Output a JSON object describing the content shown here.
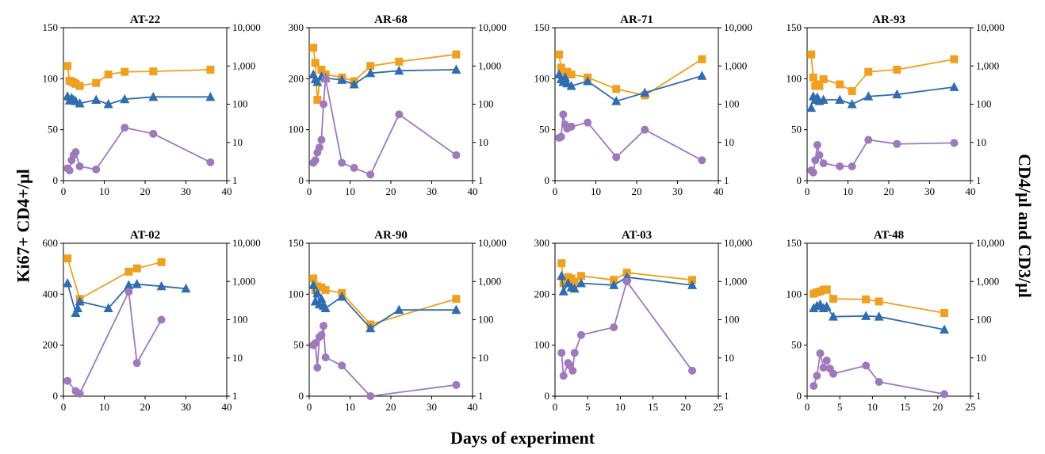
{
  "figure": {
    "ylabel_left": "Ki67+ CD4+/µl",
    "ylabel_right": "CD4/µl and CD3/µl",
    "xlabel": "Days of experiment"
  },
  "colors": {
    "orange": "#F0A020",
    "blue": "#2F6DB0",
    "purple": "#9F79BB",
    "axis": "#000000"
  },
  "chart_data": [
    {
      "type": "line",
      "title": "AT-22",
      "xlim": [
        0,
        40
      ],
      "xticks": [
        "0",
        "10",
        "20",
        "30",
        "40"
      ],
      "ylim": [
        0,
        150
      ],
      "yticks": [
        "0",
        "50",
        "100",
        "150"
      ],
      "y2log": true,
      "y2lim": [
        1,
        10000
      ],
      "y2ticks": [
        "1",
        "10",
        "100",
        "1,000",
        "10,000"
      ],
      "series": [
        {
          "marker": "square",
          "color": "orange",
          "axis": "right",
          "x": [
            1,
            1.5,
            2,
            2.5,
            3,
            4,
            8,
            11,
            15,
            22,
            36
          ],
          "y": [
            1000,
            410,
            390,
            370,
            340,
            300,
            360,
            600,
            700,
            720,
            800
          ]
        },
        {
          "marker": "triangle",
          "color": "blue",
          "axis": "right",
          "x": [
            1,
            1.5,
            2,
            2.5,
            3,
            4,
            8,
            11,
            15,
            22,
            36
          ],
          "y": [
            160,
            125,
            145,
            130,
            120,
            105,
            130,
            100,
            135,
            155,
            155
          ]
        },
        {
          "marker": "circle",
          "color": "purple",
          "axis": "left",
          "x": [
            1,
            1.5,
            2,
            2.5,
            3,
            4,
            8,
            15,
            22,
            36
          ],
          "y": [
            12,
            10,
            20,
            25,
            28,
            14,
            11,
            52,
            46,
            18
          ]
        }
      ]
    },
    {
      "type": "line",
      "title": "AR-68",
      "xlim": [
        0,
        40
      ],
      "xticks": [
        "0",
        "10",
        "20",
        "30",
        "40"
      ],
      "ylim": [
        0,
        300
      ],
      "yticks": [
        "0",
        "100",
        "200",
        "300"
      ],
      "y2log": true,
      "y2lim": [
        1,
        10000
      ],
      "y2ticks": [
        "1",
        "10",
        "100",
        "1,000",
        "10,000"
      ],
      "series": [
        {
          "marker": "square",
          "color": "orange",
          "axis": "right",
          "x": [
            1,
            1.5,
            2,
            3,
            4,
            8,
            11,
            15,
            22,
            36
          ],
          "y": [
            3000,
            1200,
            130,
            800,
            600,
            500,
            400,
            1000,
            1300,
            2000
          ]
        },
        {
          "marker": "triangle",
          "color": "blue",
          "axis": "right",
          "x": [
            1,
            1.5,
            2,
            3,
            4,
            8,
            11,
            15,
            22,
            36
          ],
          "y": [
            600,
            450,
            380,
            530,
            480,
            430,
            330,
            650,
            750,
            800
          ]
        },
        {
          "marker": "circle",
          "color": "purple",
          "axis": "left",
          "x": [
            1,
            1.5,
            2,
            2.5,
            3,
            3.5,
            4,
            8,
            11,
            15,
            22,
            36
          ],
          "y": [
            35,
            40,
            55,
            65,
            80,
            150,
            200,
            35,
            25,
            12,
            130,
            50
          ]
        }
      ]
    },
    {
      "type": "line",
      "title": "AR-71",
      "xlim": [
        0,
        40
      ],
      "xticks": [
        "0",
        "10",
        "20",
        "30",
        "40"
      ],
      "ylim": [
        0,
        150
      ],
      "yticks": [
        "0",
        "50",
        "100",
        "150"
      ],
      "y2log": true,
      "y2lim": [
        1,
        10000
      ],
      "y2ticks": [
        "1",
        "10",
        "100",
        "1,000",
        "10,000"
      ],
      "series": [
        {
          "marker": "square",
          "color": "orange",
          "axis": "right",
          "x": [
            1,
            1.5,
            2,
            3,
            4,
            8,
            15,
            22,
            36
          ],
          "y": [
            2000,
            900,
            700,
            700,
            600,
            500,
            250,
            170,
            1500
          ]
        },
        {
          "marker": "triangle",
          "color": "blue",
          "axis": "right",
          "x": [
            1,
            1.5,
            2,
            2.5,
            3,
            4,
            8,
            15,
            22,
            36
          ],
          "y": [
            600,
            450,
            380,
            500,
            350,
            300,
            400,
            120,
            200,
            550
          ]
        },
        {
          "marker": "circle",
          "color": "purple",
          "axis": "left",
          "x": [
            1,
            1.5,
            2,
            2.5,
            3,
            4,
            8,
            15,
            22,
            36
          ],
          "y": [
            42,
            43,
            65,
            55,
            51,
            53,
            57,
            23,
            50,
            20
          ]
        }
      ]
    },
    {
      "type": "line",
      "title": "AR-93",
      "xlim": [
        0,
        40
      ],
      "xticks": [
        "0",
        "10",
        "20",
        "30",
        "40"
      ],
      "ylim": [
        0,
        150
      ],
      "yticks": [
        "0",
        "50",
        "100",
        "150"
      ],
      "y2log": true,
      "y2lim": [
        1,
        10000
      ],
      "y2ticks": [
        "1",
        "10",
        "100",
        "1,000",
        "10,000"
      ],
      "series": [
        {
          "marker": "square",
          "color": "orange",
          "axis": "right",
          "x": [
            1,
            1.5,
            2,
            2.5,
            3,
            4,
            8,
            11,
            15,
            22,
            36
          ],
          "y": [
            2000,
            500,
            300,
            330,
            300,
            450,
            330,
            220,
            700,
            800,
            1500
          ]
        },
        {
          "marker": "triangle",
          "color": "blue",
          "axis": "right",
          "x": [
            1,
            1.5,
            2,
            2.5,
            3,
            4,
            8,
            11,
            15,
            22,
            36
          ],
          "y": [
            80,
            160,
            130,
            150,
            120,
            130,
            130,
            100,
            160,
            180,
            280
          ]
        },
        {
          "marker": "circle",
          "color": "purple",
          "axis": "left",
          "x": [
            1,
            1.5,
            2,
            2.5,
            3,
            4,
            8,
            11,
            15,
            22,
            36
          ],
          "y": [
            10,
            8,
            20,
            35,
            25,
            17,
            14,
            14,
            40,
            36,
            37
          ]
        }
      ]
    },
    {
      "type": "line",
      "title": "AT-02",
      "xlim": [
        0,
        40
      ],
      "xticks": [
        "0",
        "10",
        "20",
        "30",
        "40"
      ],
      "ylim": [
        0,
        600
      ],
      "yticks": [
        "0",
        "200",
        "400",
        "600"
      ],
      "y2log": true,
      "y2lim": [
        1,
        10000
      ],
      "y2ticks": [
        "1",
        "10",
        "100",
        "1,000",
        "10,000"
      ],
      "series": [
        {
          "marker": "square",
          "color": "orange",
          "axis": "right",
          "x": [
            1,
            4,
            16,
            18,
            24
          ],
          "y": [
            4000,
            350,
            1800,
            2200,
            3200
          ]
        },
        {
          "marker": "triangle",
          "color": "blue",
          "axis": "right",
          "x": [
            1,
            3,
            3.5,
            4,
            11,
            16,
            18,
            24,
            30
          ],
          "y": [
            900,
            150,
            200,
            300,
            200,
            800,
            850,
            750,
            650
          ]
        },
        {
          "marker": "circle",
          "color": "purple",
          "axis": "left",
          "x": [
            1,
            3,
            4,
            16,
            18,
            24
          ],
          "y": [
            60,
            20,
            10,
            410,
            130,
            300
          ]
        }
      ]
    },
    {
      "type": "line",
      "title": "AR-90",
      "xlim": [
        0,
        40
      ],
      "xticks": [
        "0",
        "10",
        "20",
        "30",
        "40"
      ],
      "ylim": [
        0,
        150
      ],
      "yticks": [
        "0",
        "50",
        "100",
        "150"
      ],
      "y2log": true,
      "y2lim": [
        1,
        10000
      ],
      "y2ticks": [
        "1",
        "10",
        "100",
        "1,000",
        "10,000"
      ],
      "series": [
        {
          "marker": "square",
          "color": "orange",
          "axis": "right",
          "x": [
            1,
            1.5,
            2,
            3,
            4,
            8,
            15,
            36
          ],
          "y": [
            1200,
            600,
            750,
            700,
            600,
            500,
            75,
            350
          ]
        },
        {
          "marker": "triangle",
          "color": "blue",
          "axis": "right",
          "x": [
            1,
            1.5,
            2,
            2.5,
            3,
            3.5,
            4,
            8,
            15,
            22,
            36
          ],
          "y": [
            800,
            300,
            500,
            250,
            350,
            230,
            200,
            400,
            60,
            180,
            180
          ]
        },
        {
          "marker": "circle",
          "color": "purple",
          "axis": "left",
          "x": [
            1,
            1.5,
            2,
            2.5,
            3,
            3.5,
            4,
            8,
            15,
            36
          ],
          "y": [
            50,
            52,
            28,
            58,
            60,
            69,
            38,
            30,
            0,
            11
          ]
        }
      ]
    },
    {
      "type": "line",
      "title": "AT-03",
      "xlim": [
        0,
        25
      ],
      "xticks": [
        "0",
        "5",
        "10",
        "15",
        "20",
        "25"
      ],
      "ylim": [
        0,
        300
      ],
      "yticks": [
        "0",
        "100",
        "200",
        "300"
      ],
      "y2log": true,
      "y2lim": [
        1,
        10000
      ],
      "y2ticks": [
        "1",
        "10",
        "100",
        "1,000",
        "10,000"
      ],
      "series": [
        {
          "marker": "square",
          "color": "orange",
          "axis": "right",
          "x": [
            1,
            1.3,
            2,
            2.5,
            3,
            4,
            9,
            11,
            21
          ],
          "y": [
            3000,
            900,
            1300,
            1200,
            1000,
            1400,
            1100,
            1700,
            1100
          ]
        },
        {
          "marker": "triangle",
          "color": "blue",
          "axis": "right",
          "x": [
            1,
            1.3,
            2,
            2.5,
            3,
            4,
            9,
            11,
            21
          ],
          "y": [
            1400,
            550,
            900,
            700,
            650,
            900,
            800,
            1300,
            800
          ]
        },
        {
          "marker": "circle",
          "color": "purple",
          "axis": "left",
          "x": [
            1,
            1.3,
            2,
            2.3,
            2.7,
            3,
            4,
            9,
            11,
            21
          ],
          "y": [
            85,
            40,
            65,
            60,
            50,
            85,
            120,
            135,
            225,
            50
          ]
        }
      ]
    },
    {
      "type": "line",
      "title": "AT-48",
      "xlim": [
        0,
        25
      ],
      "xticks": [
        "0",
        "5",
        "10",
        "15",
        "20",
        "25"
      ],
      "ylim": [
        0,
        150
      ],
      "yticks": [
        "0",
        "50",
        "100",
        "150"
      ],
      "y2log": true,
      "y2lim": [
        1,
        10000
      ],
      "y2ticks": [
        "1",
        "10",
        "100",
        "1,000",
        "10,000"
      ],
      "series": [
        {
          "marker": "square",
          "color": "orange",
          "axis": "right",
          "x": [
            1,
            1.5,
            2,
            2.5,
            3,
            4,
            9,
            11,
            21
          ],
          "y": [
            480,
            520,
            550,
            600,
            620,
            350,
            340,
            300,
            150
          ]
        },
        {
          "marker": "triangle",
          "color": "blue",
          "axis": "right",
          "x": [
            1,
            1.5,
            2,
            2.5,
            3,
            4,
            9,
            11,
            21
          ],
          "y": [
            200,
            230,
            250,
            200,
            220,
            120,
            125,
            120,
            55
          ]
        },
        {
          "marker": "circle",
          "color": "purple",
          "axis": "left",
          "x": [
            1,
            1.5,
            2,
            2.5,
            3,
            3.5,
            4,
            9,
            11,
            21
          ],
          "y": [
            10,
            20,
            42,
            28,
            35,
            27,
            22,
            30,
            14,
            2
          ]
        }
      ]
    }
  ]
}
